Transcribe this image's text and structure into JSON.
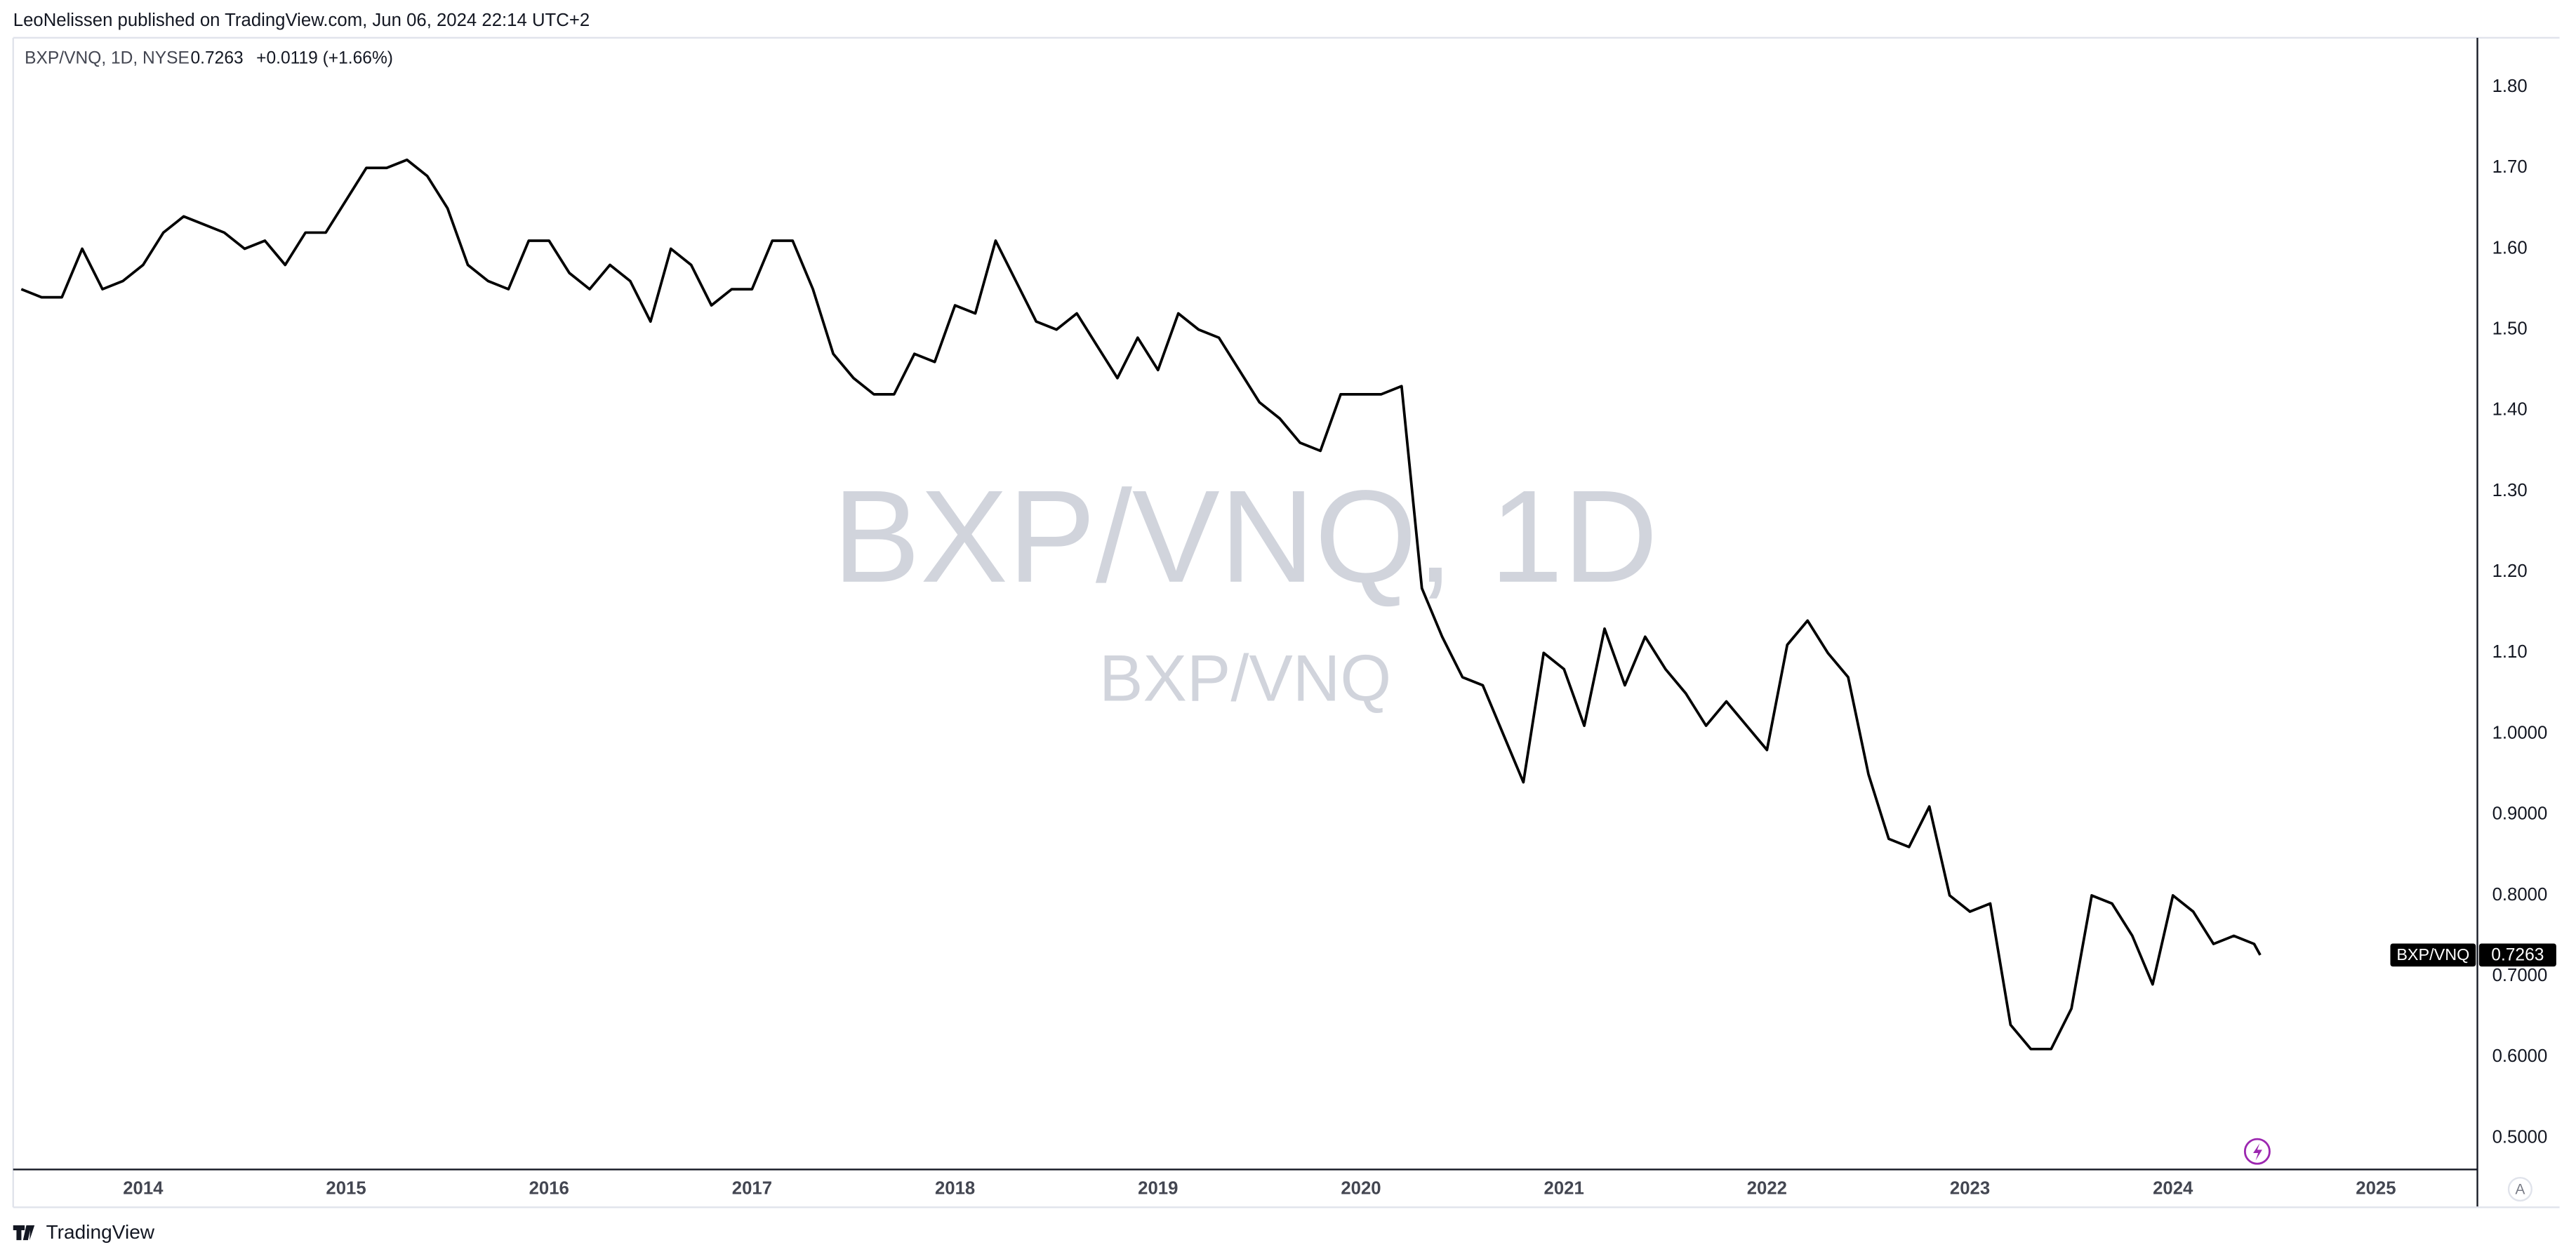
{
  "header": {
    "publisher": "LeoNelissen published on TradingView.com, Jun 06, 2024 22:14 UTC+2",
    "symbol": "BXP/VNQ, 1D, NYSE",
    "last": "0.7263",
    "change": "+0.0119 (+1.66%)"
  },
  "watermark": {
    "line1": "BXP/VNQ, 1D",
    "line2": "BXP/VNQ"
  },
  "price_tag": {
    "label": "0.7263"
  },
  "axis_mode": "A",
  "footer": "TradingView",
  "chart_data": {
    "type": "line",
    "grid": false,
    "xlim": [
      2013.36,
      2025.5
    ],
    "xticks": [
      2014,
      2015,
      2016,
      2017,
      2018,
      2019,
      2020,
      2021,
      2022,
      2023,
      2024,
      2025
    ],
    "ylim": [
      0.461,
      1.861
    ],
    "yticks": [
      {
        "value": 1.8,
        "label": "1.80"
      },
      {
        "value": 1.7,
        "label": "1.70"
      },
      {
        "value": 1.6,
        "label": "1.60"
      },
      {
        "value": 1.5,
        "label": "1.50"
      },
      {
        "value": 1.4,
        "label": "1.40"
      },
      {
        "value": 1.3,
        "label": "1.30"
      },
      {
        "value": 1.2,
        "label": "1.20"
      },
      {
        "value": 1.1,
        "label": "1.10"
      },
      {
        "value": 1.0,
        "label": "1.0000"
      },
      {
        "value": 0.9,
        "label": "0.9000"
      },
      {
        "value": 0.8,
        "label": "0.8000"
      },
      {
        "value": 0.7,
        "label": "0.7000"
      },
      {
        "value": 0.6,
        "label": "0.6000"
      },
      {
        "value": 0.5,
        "label": "0.5000"
      }
    ],
    "x": [
      2013.4,
      2013.5,
      2013.6,
      2013.7,
      2013.8,
      2013.9,
      2014.0,
      2014.1,
      2014.2,
      2014.3,
      2014.4,
      2014.5,
      2014.6,
      2014.7,
      2014.8,
      2014.9,
      2015.0,
      2015.1,
      2015.2,
      2015.3,
      2015.4,
      2015.5,
      2015.6,
      2015.7,
      2015.8,
      2015.9,
      2016.0,
      2016.1,
      2016.2,
      2016.3,
      2016.4,
      2016.5,
      2016.6,
      2016.7,
      2016.8,
      2016.9,
      2017.0,
      2017.1,
      2017.2,
      2017.3,
      2017.4,
      2017.5,
      2017.6,
      2017.7,
      2017.8,
      2017.9,
      2018.0,
      2018.1,
      2018.2,
      2018.3,
      2018.4,
      2018.5,
      2018.6,
      2018.7,
      2018.8,
      2018.9,
      2019.0,
      2019.1,
      2019.2,
      2019.3,
      2019.4,
      2019.5,
      2019.6,
      2019.7,
      2019.8,
      2019.9,
      2020.0,
      2020.1,
      2020.2,
      2020.3,
      2020.4,
      2020.5,
      2020.6,
      2020.7,
      2020.8,
      2020.9,
      2021.0,
      2021.1,
      2021.2,
      2021.3,
      2021.4,
      2021.5,
      2021.6,
      2021.7,
      2021.8,
      2021.9,
      2022.0,
      2022.1,
      2022.2,
      2022.3,
      2022.4,
      2022.5,
      2022.6,
      2022.7,
      2022.8,
      2022.9,
      2023.0,
      2023.1,
      2023.2,
      2023.3,
      2023.4,
      2023.5,
      2023.6,
      2023.7,
      2023.8,
      2023.9,
      2024.0,
      2024.1,
      2024.2,
      2024.3,
      2024.4,
      2024.43
    ],
    "series": [
      {
        "name": "BXP/VNQ",
        "color": "#000000",
        "values": [
          1.55,
          1.54,
          1.54,
          1.6,
          1.55,
          1.56,
          1.58,
          1.62,
          1.64,
          1.63,
          1.62,
          1.6,
          1.61,
          1.58,
          1.62,
          1.62,
          1.66,
          1.7,
          1.7,
          1.71,
          1.69,
          1.65,
          1.58,
          1.56,
          1.55,
          1.61,
          1.61,
          1.57,
          1.55,
          1.58,
          1.56,
          1.51,
          1.6,
          1.58,
          1.53,
          1.55,
          1.55,
          1.61,
          1.61,
          1.55,
          1.47,
          1.44,
          1.42,
          1.42,
          1.47,
          1.46,
          1.53,
          1.52,
          1.61,
          1.56,
          1.51,
          1.5,
          1.52,
          1.48,
          1.44,
          1.49,
          1.45,
          1.52,
          1.5,
          1.49,
          1.45,
          1.41,
          1.39,
          1.36,
          1.35,
          1.42,
          1.42,
          1.42,
          1.43,
          1.18,
          1.12,
          1.07,
          1.06,
          1.0,
          0.94,
          1.1,
          1.08,
          1.01,
          1.13,
          1.06,
          1.12,
          1.08,
          1.05,
          1.01,
          1.04,
          1.01,
          0.98,
          1.11,
          1.14,
          1.1,
          1.07,
          0.95,
          0.87,
          0.86,
          0.91,
          0.8,
          0.78,
          0.79,
          0.64,
          0.61,
          0.61,
          0.66,
          0.8,
          0.79,
          0.75,
          0.69,
          0.8,
          0.78,
          0.74,
          0.75,
          0.74,
          0.7263
        ]
      }
    ]
  }
}
